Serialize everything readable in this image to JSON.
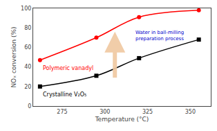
{
  "chart_data": {
    "type": "line",
    "title": "",
    "xlabel": "Temperature (°C)",
    "ylabel": "NOₓ conversion (%)",
    "xlim": [
      258,
      362
    ],
    "ylim": [
      0,
      100
    ],
    "xticks": [
      275,
      300,
      325,
      350
    ],
    "yticks": [
      0,
      20,
      40,
      60,
      80,
      100
    ],
    "grid": false,
    "x": [
      262,
      295,
      320,
      355
    ],
    "series": [
      {
        "name": "Polymeric vanadyl",
        "color": "#ff0000",
        "marker": "circle",
        "values": [
          47,
          70,
          91,
          98
        ]
      },
      {
        "name": "Crystalline V₂O₅",
        "color": "#000000",
        "marker": "square",
        "values": [
          20,
          31,
          49,
          68
        ]
      }
    ],
    "annotations": [
      "Water in ball-milling",
      "preparation process"
    ]
  }
}
